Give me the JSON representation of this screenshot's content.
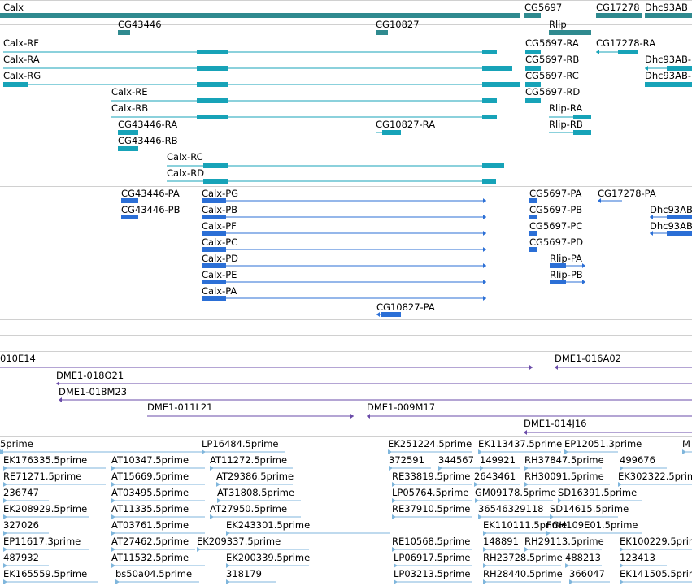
{
  "colors": {
    "gene": "#2f8a8f",
    "transcript": "#17a3b8",
    "protein": "#2b6fd6",
    "clone": "#6a4ba8",
    "est": "#7fb6dc",
    "divider": "#d0d0d0"
  },
  "genes": [
    {
      "label": "Calx",
      "color": "gene"
    },
    {
      "label": "CG5697",
      "color": "gene"
    },
    {
      "label": "CG17278",
      "color": "gene"
    },
    {
      "label": "Dhc93AB",
      "color": "gene"
    },
    {
      "label": "CG43446",
      "color": "gene"
    },
    {
      "label": "CG10827",
      "color": "gene"
    },
    {
      "label": "Rlip",
      "color": "gene"
    }
  ],
  "transcripts": [
    {
      "label": "Calx-RF",
      "color": "transcript"
    },
    {
      "label": "CG5697-RA",
      "color": "transcript"
    },
    {
      "label": "CG17278-RA",
      "color": "transcript"
    },
    {
      "label": "Calx-RA",
      "color": "transcript"
    },
    {
      "label": "CG5697-RB",
      "color": "transcript"
    },
    {
      "label": "Dhc93AB-",
      "color": "transcript"
    },
    {
      "label": "Calx-RG",
      "color": "transcript"
    },
    {
      "label": "CG5697-RC",
      "color": "transcript"
    },
    {
      "label": "Dhc93AB-",
      "color": "transcript"
    },
    {
      "label": "Calx-RE",
      "color": "transcript"
    },
    {
      "label": "CG5697-RD",
      "color": "transcript"
    },
    {
      "label": "Calx-RB",
      "color": "transcript"
    },
    {
      "label": "Rlip-RA",
      "color": "transcript"
    },
    {
      "label": "CG43446-RA",
      "color": "transcript"
    },
    {
      "label": "CG10827-RA",
      "color": "transcript"
    },
    {
      "label": "Rlip-RB",
      "color": "transcript"
    },
    {
      "label": "CG43446-RB",
      "color": "transcript"
    },
    {
      "label": "Calx-RC",
      "color": "transcript"
    },
    {
      "label": "Calx-RD",
      "color": "transcript"
    }
  ],
  "proteins": [
    {
      "label": "CG43446-PA",
      "color": "protein"
    },
    {
      "label": "Calx-PG",
      "color": "protein"
    },
    {
      "label": "CG5697-PA",
      "color": "protein"
    },
    {
      "label": "CG17278-PA",
      "color": "protein"
    },
    {
      "label": "CG43446-PB",
      "color": "protein"
    },
    {
      "label": "Calx-PB",
      "color": "protein"
    },
    {
      "label": "CG5697-PB",
      "color": "protein"
    },
    {
      "label": "Dhc93AB",
      "color": "protein"
    },
    {
      "label": "Calx-PF",
      "color": "protein"
    },
    {
      "label": "CG5697-PC",
      "color": "protein"
    },
    {
      "label": "Dhc93AB",
      "color": "protein"
    },
    {
      "label": "Calx-PC",
      "color": "protein"
    },
    {
      "label": "CG5697-PD",
      "color": "protein"
    },
    {
      "label": "Calx-PD",
      "color": "protein"
    },
    {
      "label": "Rlip-PA",
      "color": "protein"
    },
    {
      "label": "Calx-PE",
      "color": "protein"
    },
    {
      "label": "Rlip-PB",
      "color": "protein"
    },
    {
      "label": "Calx-PA",
      "color": "protein"
    },
    {
      "label": "CG10827-PA",
      "color": "protein"
    }
  ],
  "clones": [
    {
      "label": "010E14",
      "color": "clone"
    },
    {
      "label": "DME1-016A02",
      "color": "clone"
    },
    {
      "label": "DME1-018O21",
      "color": "clone"
    },
    {
      "label": "DME1-018M23",
      "color": "clone"
    },
    {
      "label": "DME1-011L21",
      "color": "clone"
    },
    {
      "label": "DME1-009M17",
      "color": "clone"
    },
    {
      "label": "DME1-014J16",
      "color": "clone"
    }
  ],
  "ests": [
    {
      "label": "5prime",
      "color": "est"
    },
    {
      "label": "LP16484.5prime",
      "color": "est"
    },
    {
      "label": "EK251224.5prime",
      "color": "est"
    },
    {
      "label": "EK113437.5prime",
      "color": "est"
    },
    {
      "label": "EP12051.3prime",
      "color": "est"
    },
    {
      "label": "M",
      "color": "est"
    },
    {
      "label": "EK176335.5prime",
      "color": "est"
    },
    {
      "label": "AT10347.5prime",
      "color": "est"
    },
    {
      "label": "AT11272.5prime",
      "color": "est"
    },
    {
      "label": "372591",
      "color": "est"
    },
    {
      "label": "344567",
      "color": "est"
    },
    {
      "label": "149921",
      "color": "est"
    },
    {
      "label": "RH37847.5prime",
      "color": "est"
    },
    {
      "label": "499676",
      "color": "est"
    },
    {
      "label": "RE71271.5prime",
      "color": "est"
    },
    {
      "label": "AT15669.5prime",
      "color": "est"
    },
    {
      "label": "AT29386.5prime",
      "color": "est"
    },
    {
      "label": "RE33819.5prime",
      "color": "est"
    },
    {
      "label": "2643461",
      "color": "est"
    },
    {
      "label": "RH30091.5prime",
      "color": "est"
    },
    {
      "label": "EK302322.5prime",
      "color": "est"
    },
    {
      "label": "236747",
      "color": "est"
    },
    {
      "label": "AT03495.5prime",
      "color": "est"
    },
    {
      "label": "AT31808.5prime",
      "color": "est"
    },
    {
      "label": "LP05764.5prime",
      "color": "est"
    },
    {
      "label": "GM09178.5prime",
      "color": "est"
    },
    {
      "label": "SD16391.5prime",
      "color": "est"
    },
    {
      "label": "EK208929.5prime",
      "color": "est"
    },
    {
      "label": "AT11335.5prime",
      "color": "est"
    },
    {
      "label": "AT27950.5prime",
      "color": "est"
    },
    {
      "label": "RE37910.5prime",
      "color": "est"
    },
    {
      "label": "36546329118",
      "color": "est"
    },
    {
      "label": "SD14615.5prime",
      "color": "est"
    },
    {
      "label": "327026",
      "color": "est"
    },
    {
      "label": "AT03761.5prime",
      "color": "est"
    },
    {
      "label": "EK243301.5prime",
      "color": "est"
    },
    {
      "label": "EK110111.5prime",
      "color": "est"
    },
    {
      "label": "FGH109E01.5prime",
      "color": "est"
    },
    {
      "label": "EP11617.3prime",
      "color": "est"
    },
    {
      "label": "AT27462.5prime",
      "color": "est"
    },
    {
      "label": "EK209337.5prime",
      "color": "est"
    },
    {
      "label": "RE10568.5prime",
      "color": "est"
    },
    {
      "label": "148891",
      "color": "est"
    },
    {
      "label": "RH29113.5prime",
      "color": "est"
    },
    {
      "label": "EK100229.5prime",
      "color": "est"
    },
    {
      "label": "487932",
      "color": "est"
    },
    {
      "label": "AT11532.5prime",
      "color": "est"
    },
    {
      "label": "EK200339.5prime",
      "color": "est"
    },
    {
      "label": "LP06917.5prime",
      "color": "est"
    },
    {
      "label": "RH23728.5prime",
      "color": "est"
    },
    {
      "label": "488213",
      "color": "est"
    },
    {
      "label": "123413",
      "color": "est"
    },
    {
      "label": "EK165559.5prime",
      "color": "est"
    },
    {
      "label": "bs50a04.5prime",
      "color": "est"
    },
    {
      "label": "318179",
      "color": "est"
    },
    {
      "label": "LP03213.5prime",
      "color": "est"
    },
    {
      "label": "RH28440.5prime",
      "color": "est"
    },
    {
      "label": "366047",
      "color": "est"
    },
    {
      "label": "EK141505.5prime",
      "color": "est"
    }
  ]
}
